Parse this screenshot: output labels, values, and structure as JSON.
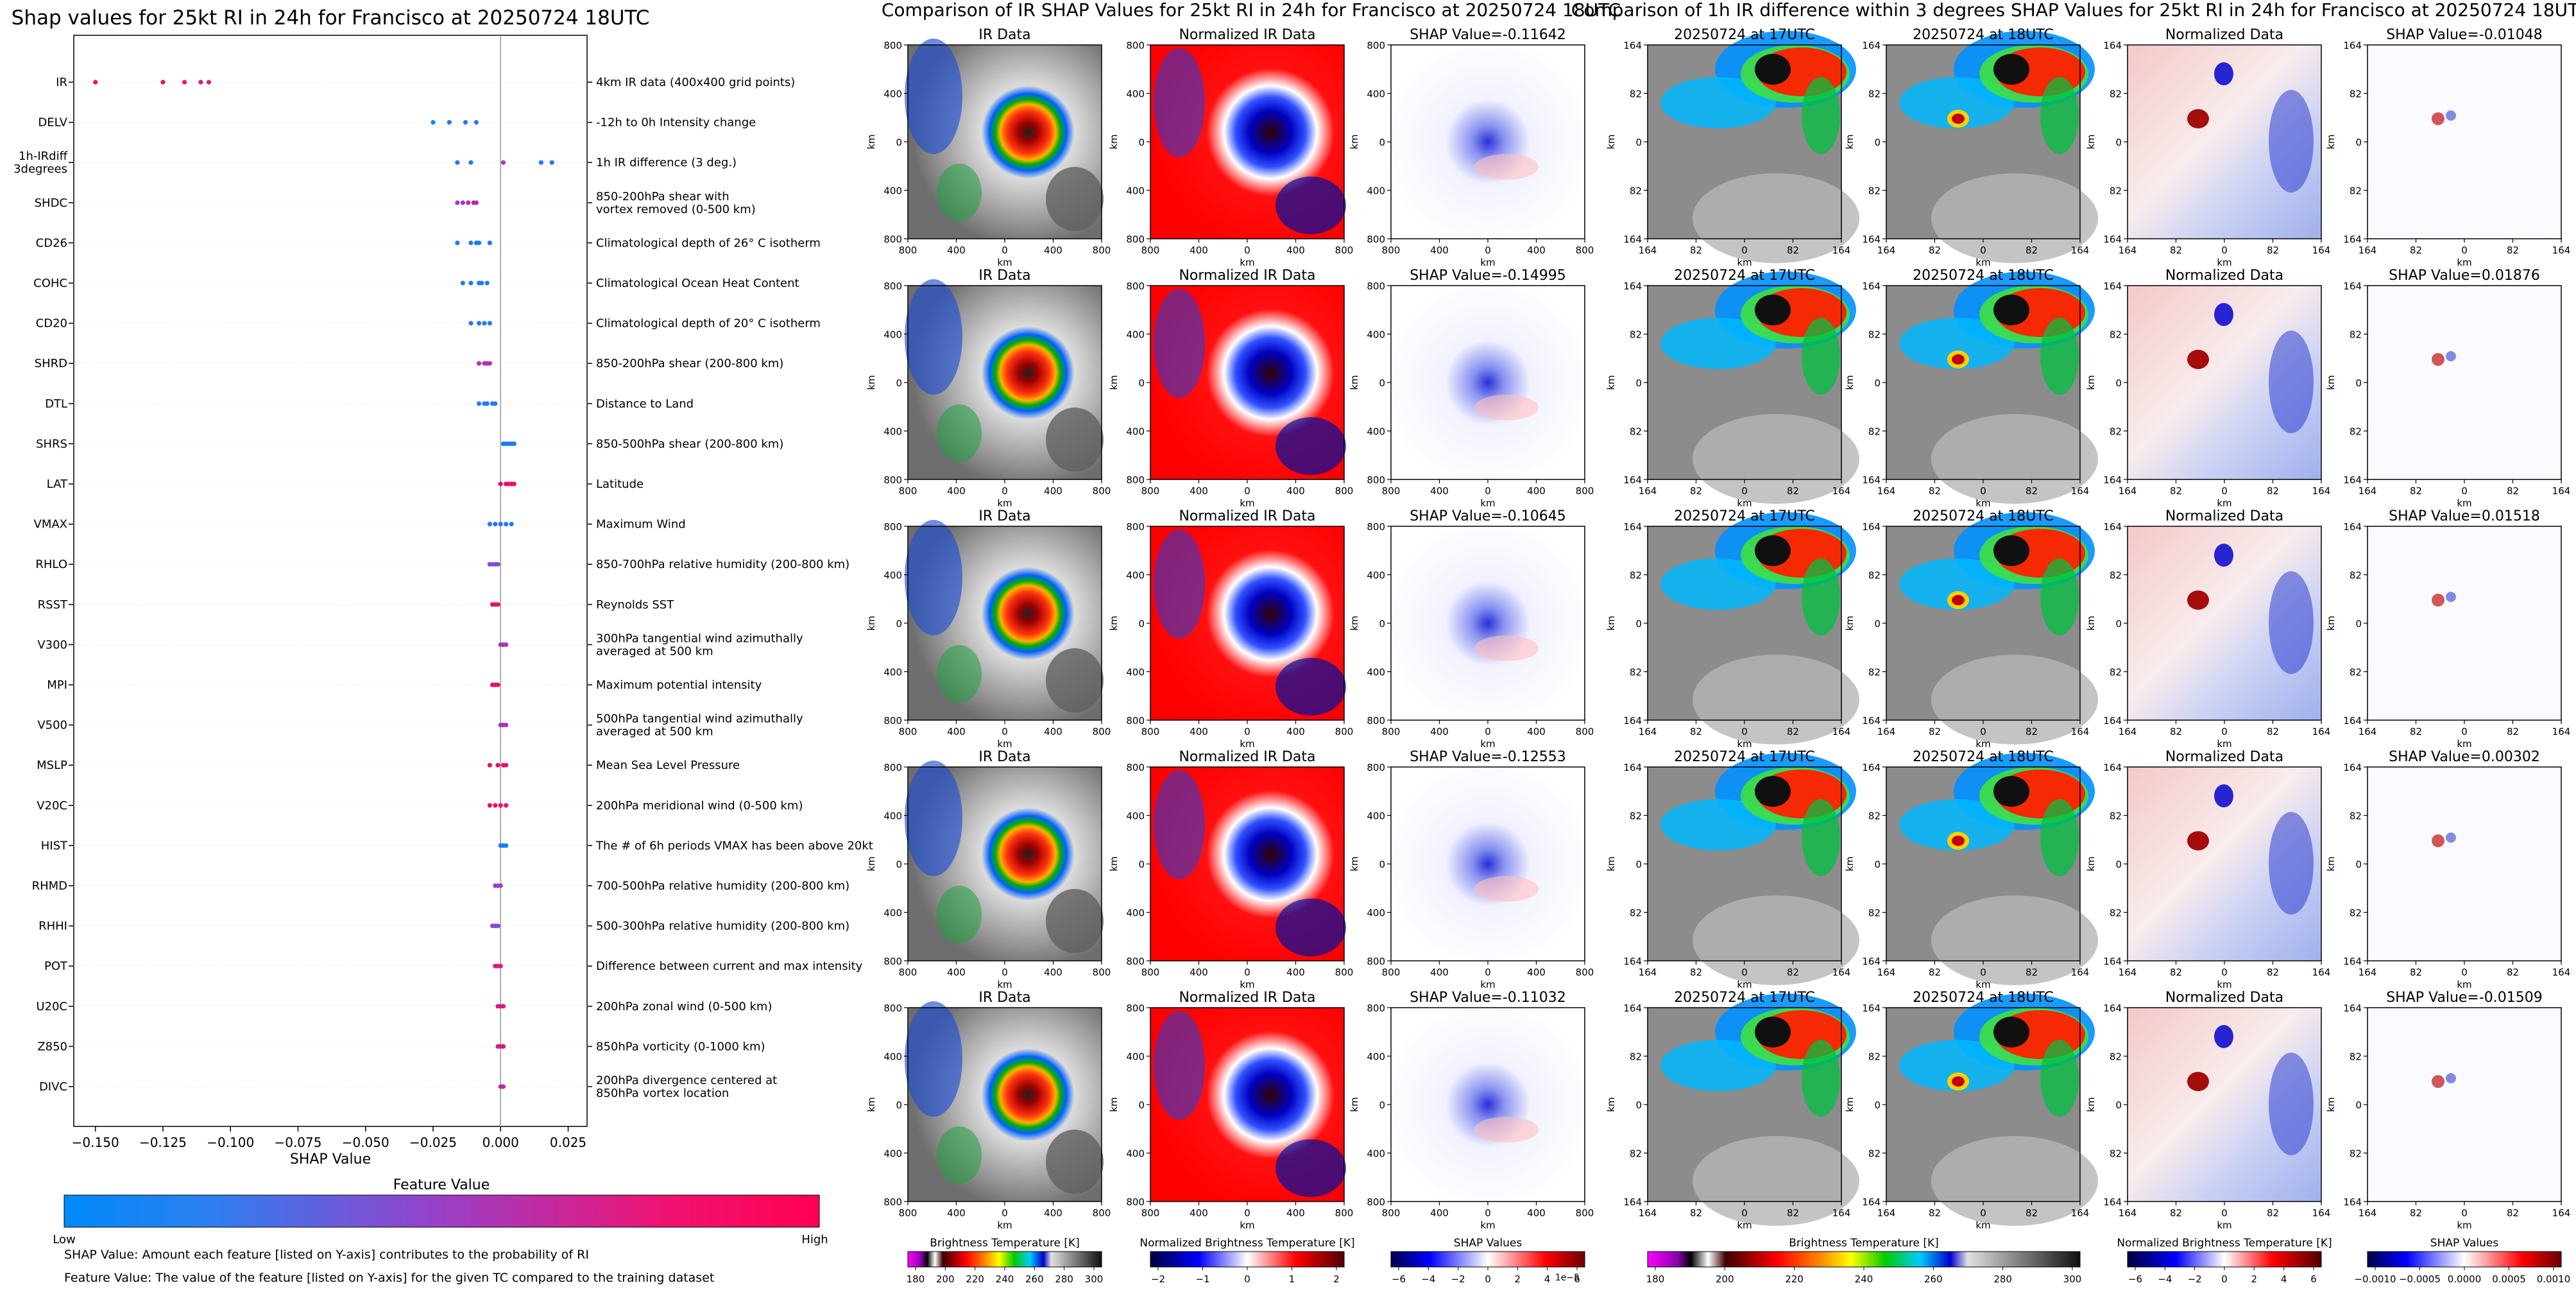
{
  "summary": {
    "title": "Shap values for 25kt RI in 24h for Francisco at 20250724 18UTC",
    "xlabel": "SHAP Value",
    "xticks": [
      "-0.150",
      "-0.125",
      "-0.100",
      "-0.075",
      "-0.050",
      "-0.025",
      "0.000",
      "0.025"
    ],
    "colorbar_title": "Feature Value",
    "colorbar_low": "Low",
    "colorbar_high": "High",
    "note1": "SHAP Value: Amount each feature [listed on Y-axis] contributes to the probability of RI",
    "note2": "Feature Value: The value of the feature [listed on Y-axis] for the given TC compared to the training dataset",
    "colors": {
      "low": "#1e88e5",
      "mid": "#7b3fc4",
      "high": "#ff0d57"
    }
  },
  "chart_data": {
    "type": "scatter",
    "title": "Shap values for 25kt RI in 24h for Francisco at 20250724 18UTC",
    "xlabel": "SHAP Value",
    "xlim": [
      -0.158,
      0.032
    ],
    "features": [
      {
        "name": "IR",
        "desc": "4km IR data (400x400 grid points)",
        "points": [
          [
            -0.15,
            0.95
          ],
          [
            -0.125,
            0.9
          ],
          [
            -0.117,
            0.85
          ],
          [
            -0.111,
            0.8
          ],
          [
            -0.108,
            0.75
          ]
        ]
      },
      {
        "name": "DELV",
        "desc": "-12h to 0h Intensity change",
        "points": [
          [
            -0.025,
            0.0
          ],
          [
            -0.019,
            0.1
          ],
          [
            -0.013,
            0.1
          ],
          [
            -0.009,
            0.15
          ]
        ]
      },
      {
        "name": "1h-IRdiff\n3degrees",
        "desc": "1h IR difference (3 deg.)",
        "points": [
          [
            -0.016,
            0.1
          ],
          [
            -0.011,
            0.1
          ],
          [
            0.001,
            0.5
          ],
          [
            0.015,
            0.1
          ],
          [
            0.019,
            0.15
          ]
        ]
      },
      {
        "name": "SHDC",
        "desc": "850-200hPa shear with\nvortex removed (0-500 km)",
        "points": [
          [
            -0.016,
            0.5
          ],
          [
            -0.014,
            0.55
          ],
          [
            -0.012,
            0.6
          ],
          [
            -0.01,
            0.65
          ],
          [
            -0.009,
            0.7
          ]
        ]
      },
      {
        "name": "CD26",
        "desc": "Climatological depth of 26° C isotherm",
        "points": [
          [
            -0.016,
            0.1
          ],
          [
            -0.011,
            0.1
          ],
          [
            -0.009,
            0.12
          ],
          [
            -0.008,
            0.1
          ],
          [
            -0.004,
            0.1
          ]
        ]
      },
      {
        "name": "COHC",
        "desc": "Climatological Ocean Heat Content",
        "points": [
          [
            -0.014,
            0.1
          ],
          [
            -0.011,
            0.1
          ],
          [
            -0.008,
            0.1
          ],
          [
            -0.007,
            0.1
          ],
          [
            -0.005,
            0.1
          ]
        ]
      },
      {
        "name": "CD20",
        "desc": "Climatological depth of 20° C isotherm",
        "points": [
          [
            -0.011,
            0.1
          ],
          [
            -0.008,
            0.1
          ],
          [
            -0.006,
            0.1
          ],
          [
            -0.004,
            0.1
          ]
        ]
      },
      {
        "name": "SHRD",
        "desc": "850-200hPa shear (200-800 km)",
        "points": [
          [
            -0.008,
            0.6
          ],
          [
            -0.006,
            0.6
          ],
          [
            -0.005,
            0.6
          ],
          [
            -0.004,
            0.6
          ]
        ]
      },
      {
        "name": "DTL",
        "desc": "Distance to Land",
        "points": [
          [
            -0.008,
            0.15
          ],
          [
            -0.006,
            0.1
          ],
          [
            -0.005,
            0.1
          ],
          [
            -0.003,
            0.1
          ],
          [
            -0.002,
            0.1
          ]
        ]
      },
      {
        "name": "SHRS",
        "desc": "850-500hPa shear (200-800 km)",
        "points": [
          [
            0.001,
            0.1
          ],
          [
            0.002,
            0.1
          ],
          [
            0.003,
            0.1
          ],
          [
            0.004,
            0.1
          ],
          [
            0.005,
            0.1
          ]
        ]
      },
      {
        "name": "LAT",
        "desc": "Latitude",
        "points": [
          [
            0.0,
            0.95
          ],
          [
            0.002,
            0.9
          ],
          [
            0.003,
            0.9
          ],
          [
            0.004,
            0.9
          ],
          [
            0.005,
            0.9
          ]
        ]
      },
      {
        "name": "VMAX",
        "desc": "Maximum Wind",
        "points": [
          [
            -0.004,
            0.1
          ],
          [
            -0.002,
            0.15
          ],
          [
            0.0,
            0.2
          ],
          [
            0.002,
            0.1
          ],
          [
            0.004,
            0.1
          ]
        ]
      },
      {
        "name": "RHLO",
        "desc": "850-700hPa relative humidity (200-800 km)",
        "points": [
          [
            -0.004,
            0.4
          ],
          [
            -0.003,
            0.4
          ],
          [
            -0.002,
            0.4
          ],
          [
            -0.001,
            0.4
          ]
        ]
      },
      {
        "name": "RSST",
        "desc": "Reynolds SST",
        "points": [
          [
            -0.003,
            0.9
          ],
          [
            -0.002,
            0.9
          ],
          [
            -0.001,
            0.9
          ]
        ]
      },
      {
        "name": "V300",
        "desc": "300hPa tangential wind azimuthally\naveraged at 500 km",
        "points": [
          [
            0.0,
            0.6
          ],
          [
            0.001,
            0.6
          ],
          [
            0.002,
            0.6
          ]
        ]
      },
      {
        "name": "MPI",
        "desc": "Maximum potential intensity",
        "points": [
          [
            -0.003,
            0.9
          ],
          [
            -0.002,
            0.9
          ],
          [
            -0.001,
            0.9
          ]
        ]
      },
      {
        "name": "V500",
        "desc": "500hPa tangential wind azimuthally\naveraged at 500 km",
        "points": [
          [
            0.0,
            0.6
          ],
          [
            0.001,
            0.6
          ],
          [
            0.002,
            0.6
          ]
        ]
      },
      {
        "name": "MSLP",
        "desc": "Mean Sea Level Pressure",
        "points": [
          [
            -0.004,
            0.9
          ],
          [
            -0.001,
            0.9
          ],
          [
            0.001,
            0.9
          ],
          [
            0.002,
            0.9
          ]
        ]
      },
      {
        "name": "V20C",
        "desc": "200hPa meridional wind (0-500 km)",
        "points": [
          [
            -0.004,
            0.9
          ],
          [
            -0.002,
            0.9
          ],
          [
            0.0,
            0.9
          ],
          [
            0.002,
            0.9
          ]
        ]
      },
      {
        "name": "HIST",
        "desc": "The # of 6h periods VMAX has been above 20kt",
        "points": [
          [
            0.0,
            0.1
          ],
          [
            0.001,
            0.1
          ],
          [
            0.002,
            0.1
          ]
        ]
      },
      {
        "name": "RHMD",
        "desc": "700-500hPa relative humidity (200-800 km)",
        "points": [
          [
            -0.002,
            0.5
          ],
          [
            -0.001,
            0.5
          ],
          [
            0.0,
            0.5
          ]
        ]
      },
      {
        "name": "RHHI",
        "desc": "500-300hPa relative humidity (200-800 km)",
        "points": [
          [
            -0.003,
            0.5
          ],
          [
            -0.002,
            0.4
          ],
          [
            -0.001,
            0.4
          ]
        ]
      },
      {
        "name": "POT",
        "desc": "Difference between current and max intensity",
        "points": [
          [
            -0.002,
            0.8
          ],
          [
            -0.001,
            0.8
          ],
          [
            0.0,
            0.8
          ]
        ]
      },
      {
        "name": "U20C",
        "desc": "200hPa zonal wind (0-500 km)",
        "points": [
          [
            -0.001,
            0.8
          ],
          [
            0.0,
            0.8
          ],
          [
            0.001,
            0.8
          ]
        ]
      },
      {
        "name": "Z850",
        "desc": "850hPa vorticity (0-1000 km)",
        "points": [
          [
            -0.001,
            0.8
          ],
          [
            0.0,
            0.8
          ],
          [
            0.001,
            0.8
          ]
        ]
      },
      {
        "name": "DIVC",
        "desc": "200hPa divergence centered at\n850hPa vortex location",
        "points": [
          [
            0.0,
            0.7
          ],
          [
            0.001,
            0.7
          ]
        ]
      }
    ]
  },
  "ir_panel": {
    "title": "Comparison of IR SHAP Values for 25kt RI in 24h for Francisco at 20250724 18UTC",
    "col_titles": [
      "IR Data",
      "Normalized IR Data"
    ],
    "shap_titles": [
      "SHAP Value=-0.11642",
      "SHAP Value=-0.14995",
      "SHAP Value=-0.10645",
      "SHAP Value=-0.12553",
      "SHAP Value=-0.11032"
    ],
    "yticks": [
      "800",
      "400",
      "0",
      "400",
      "800"
    ],
    "xticks": [
      "800",
      "400",
      "0",
      "400",
      "800"
    ],
    "axis_label": "km",
    "cbars": [
      {
        "label": "Brightness Temperature [K]",
        "ticks": [
          "180",
          "200",
          "220",
          "240",
          "260",
          "280",
          "300"
        ],
        "exp": ""
      },
      {
        "label": "Normalized Brightness Temperature [K]",
        "ticks": [
          "−2",
          "−1",
          "0",
          "1",
          "2"
        ],
        "exp": ""
      },
      {
        "label": "SHAP Values",
        "ticks": [
          "−6",
          "−4",
          "−2",
          "0",
          "2",
          "4",
          "6"
        ],
        "exp": "1e−5"
      }
    ]
  },
  "diff_panel": {
    "title": "Comparison of 1h IR difference within 3 degrees SHAP Values for 25kt RI in 24h for Francisco at 20250724 18UTC",
    "col_titles": [
      "20250724 at 17UTC",
      "20250724 at 18UTC",
      "Normalized Data"
    ],
    "shap_titles": [
      "SHAP Value=-0.01048",
      "SHAP Value=0.01876",
      "SHAP Value=0.01518",
      "SHAP Value=0.00302",
      "SHAP Value=-0.01509"
    ],
    "yticks": [
      "164",
      "82",
      "0",
      "82",
      "164"
    ],
    "xticks": [
      "164",
      "82",
      "0",
      "82",
      "164"
    ],
    "axis_label": "km",
    "cbars": [
      {
        "label": "Brightness Temperature [K]",
        "ticks": [
          "180",
          "200",
          "220",
          "240",
          "260",
          "280",
          "300"
        ]
      },
      {
        "label": "Normalized Brightness Temperature [K]",
        "ticks": [
          "−6",
          "−4",
          "−2",
          "0",
          "2",
          "4",
          "6"
        ]
      },
      {
        "label": "SHAP Values",
        "ticks": [
          "−0.0010",
          "−0.0005",
          "0.0000",
          "0.0005",
          "0.0010"
        ]
      }
    ]
  }
}
